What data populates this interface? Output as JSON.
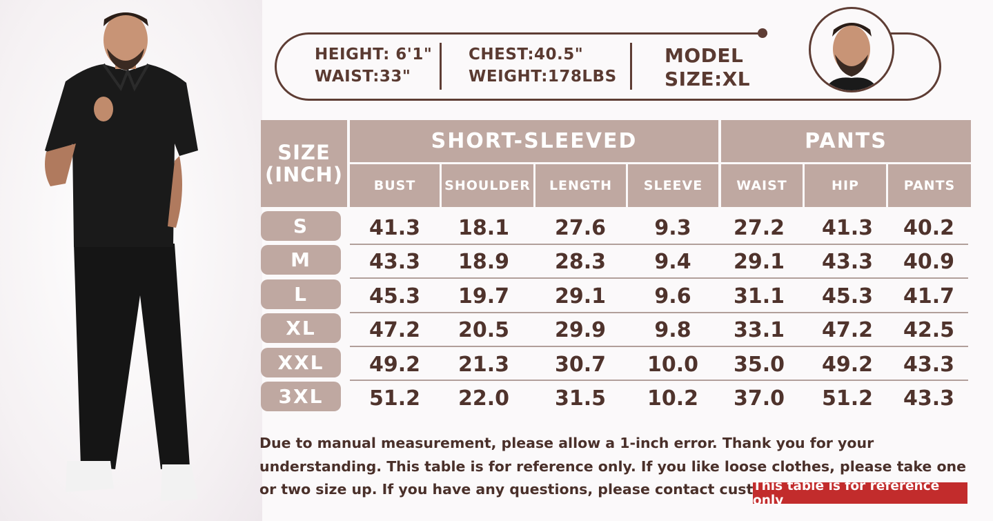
{
  "model": {
    "height": "HEIGHT: 6'1\"",
    "waist": "WAIST:33\"",
    "chest": "CHEST:40.5\"",
    "weight": "WEIGHT:178LBS",
    "size_label": "MODEL",
    "size_value": "SIZE:XL"
  },
  "table": {
    "size_header_line1": "SIZE",
    "size_header_line2": "(INCH)",
    "group_top": "SHORT-SLEEVED",
    "group_pants": "PANTS",
    "columns": [
      "BUST",
      "SHOULDER",
      "LENGTH",
      "SLEEVE",
      "WAIST",
      "HIP",
      "PANTS"
    ],
    "rows": [
      {
        "size": "S",
        "values": [
          "41.3",
          "18.1",
          "27.6",
          "9.3",
          "27.2",
          "41.3",
          "40.2"
        ]
      },
      {
        "size": "M",
        "values": [
          "43.3",
          "18.9",
          "28.3",
          "9.4",
          "29.1",
          "43.3",
          "40.9"
        ]
      },
      {
        "size": "L",
        "values": [
          "45.3",
          "19.7",
          "29.1",
          "9.6",
          "31.1",
          "45.3",
          "41.7"
        ]
      },
      {
        "size": "XL",
        "values": [
          "47.2",
          "20.5",
          "29.9",
          "9.8",
          "33.1",
          "47.2",
          "42.5"
        ]
      },
      {
        "size": "XXL",
        "values": [
          "49.2",
          "21.3",
          "30.7",
          "10.0",
          "35.0",
          "49.2",
          "43.3"
        ]
      },
      {
        "size": "3XL",
        "values": [
          "51.2",
          "22.0",
          "31.5",
          "10.2",
          "37.0",
          "51.2",
          "43.3"
        ]
      }
    ]
  },
  "note": "Due to manual measurement, please allow a 1-inch error. Thank you for your understanding. This table is for reference only. If you like loose clothes, please take one or two size up. If you have any questions, please contact customer service.",
  "badge": "This table is for reference only",
  "colors": {
    "header_fill": "#bfa8a1",
    "text_brown": "#5a3a31",
    "badge_red": "#c22c2c"
  }
}
